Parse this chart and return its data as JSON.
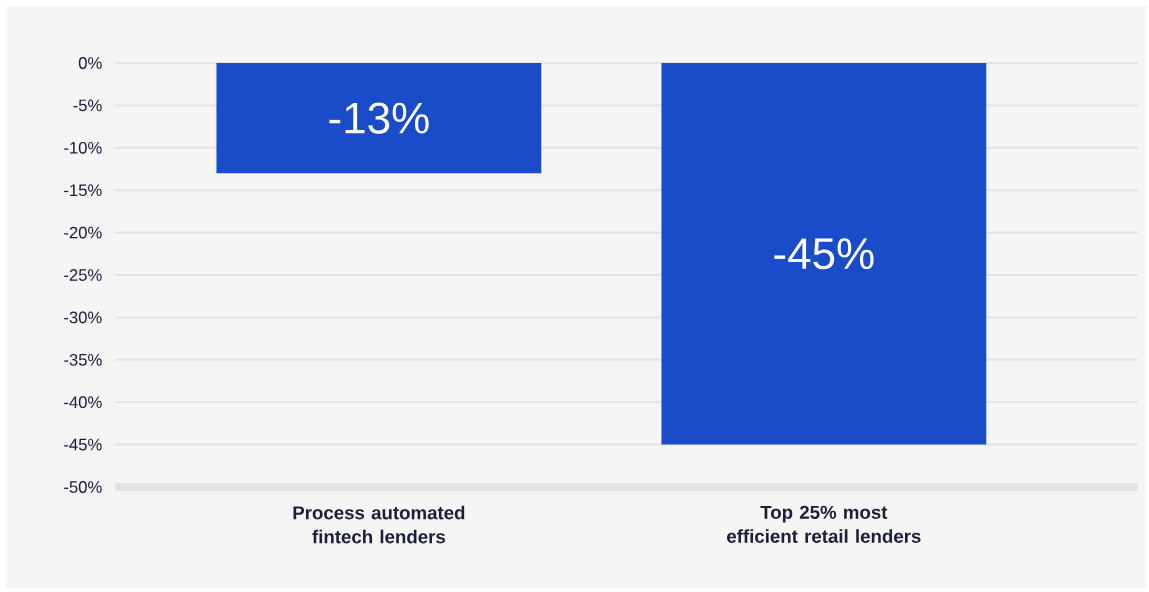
{
  "chart_data": {
    "type": "bar",
    "categories": [
      "Process automated fintech lenders",
      "Top 25% most efficient retail lenders"
    ],
    "values": [
      -13,
      -45
    ],
    "value_labels": [
      "-13%",
      "-45%"
    ],
    "color": "#1a4bc8",
    "ylim": [
      -50,
      0
    ],
    "yticks": [
      {
        "value": 0,
        "label": "0%"
      },
      {
        "value": -5,
        "label": "-5%"
      },
      {
        "value": -10,
        "label": "-10%"
      },
      {
        "value": -15,
        "label": "-15%"
      },
      {
        "value": -20,
        "label": "-20%"
      },
      {
        "value": -25,
        "label": "-25%"
      },
      {
        "value": -30,
        "label": "-30%"
      },
      {
        "value": -35,
        "label": "-35%"
      },
      {
        "value": -40,
        "label": "-40%"
      },
      {
        "value": -45,
        "label": "-45%"
      },
      {
        "value": -50,
        "label": "-50%"
      }
    ],
    "grid": "y"
  }
}
